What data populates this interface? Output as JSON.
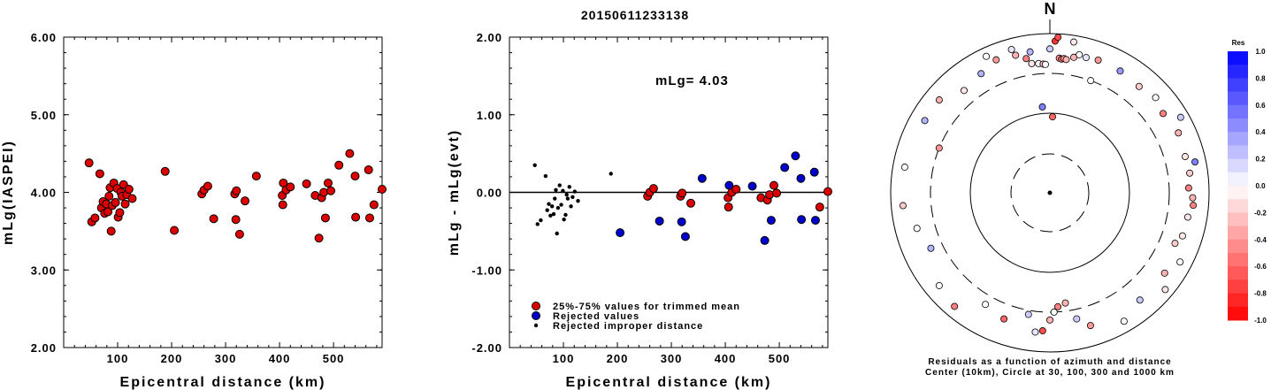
{
  "title": "20150611233138",
  "colors": {
    "used": "#dd0000",
    "rejected": "#0000cc",
    "improper": "#000000"
  },
  "chart_data": [
    {
      "type": "scatter",
      "xlabel": "Epicentral distance (km)",
      "ylabel": "mLg(IASPEI)",
      "xlim": [
        0,
        590
      ],
      "ylim": [
        2,
        6
      ],
      "xticks": [
        "100",
        "200",
        "300",
        "400",
        "500"
      ],
      "yticks": [
        "2.00",
        "3.00",
        "4.00",
        "5.00",
        "6.00"
      ],
      "points": [
        [
          47,
          4.38
        ],
        [
          52,
          3.62
        ],
        [
          58,
          3.67
        ],
        [
          67,
          4.24
        ],
        [
          70,
          3.8
        ],
        [
          73,
          3.88
        ],
        [
          76,
          3.73
        ],
        [
          79,
          3.85
        ],
        [
          82,
          3.75
        ],
        [
          84,
          3.95
        ],
        [
          86,
          4.06
        ],
        [
          88,
          3.5
        ],
        [
          90,
          3.83
        ],
        [
          93,
          4.12
        ],
        [
          96,
          3.87
        ],
        [
          99,
          4.05
        ],
        [
          101,
          3.68
        ],
        [
          104,
          3.74
        ],
        [
          106,
          4.0
        ],
        [
          108,
          3.95
        ],
        [
          111,
          4.1
        ],
        [
          114,
          3.85
        ],
        [
          117,
          3.97
        ],
        [
          121,
          4.04
        ],
        [
          127,
          3.92
        ],
        [
          188,
          4.27
        ],
        [
          205,
          3.51
        ],
        [
          256,
          3.98
        ],
        [
          260,
          4.03
        ],
        [
          267,
          4.08
        ],
        [
          278,
          3.66
        ],
        [
          317,
          3.98
        ],
        [
          319,
          3.65
        ],
        [
          320,
          4.02
        ],
        [
          326,
          3.46
        ],
        [
          336,
          3.89
        ],
        [
          357,
          4.21
        ],
        [
          405,
          3.96
        ],
        [
          406,
          3.84
        ],
        [
          407,
          4.12
        ],
        [
          412,
          4.03
        ],
        [
          420,
          4.07
        ],
        [
          450,
          4.11
        ],
        [
          466,
          3.96
        ],
        [
          473,
          3.41
        ],
        [
          478,
          3.93
        ],
        [
          482,
          4.0
        ],
        [
          485,
          3.67
        ],
        [
          490,
          4.12
        ],
        [
          495,
          4.02
        ],
        [
          510,
          4.35
        ],
        [
          530,
          4.5
        ],
        [
          540,
          4.21
        ],
        [
          541,
          3.68
        ],
        [
          565,
          4.29
        ],
        [
          567,
          3.67
        ],
        [
          575,
          3.84
        ],
        [
          590,
          4.04
        ]
      ]
    },
    {
      "type": "scatter",
      "xlabel": "Epicentral distance (km)",
      "ylabel": "mLg - mLg(evt)",
      "xlim": [
        0,
        590
      ],
      "ylim": [
        -2,
        2
      ],
      "xticks": [
        "100",
        "200",
        "300",
        "400",
        "500"
      ],
      "yticks": [
        "-2.00",
        "-1.00",
        "0.00",
        "1.00",
        "2.00"
      ],
      "reference_line": 0,
      "annotation": "mLg= 4.03",
      "legend": [
        {
          "key": "used",
          "label": "25%-75% values for trimmed mean"
        },
        {
          "key": "rejected",
          "label": "Rejected values"
        },
        {
          "key": "improper",
          "label": "Rejected improper distance"
        }
      ],
      "series": [
        {
          "key": "used",
          "points": [
            [
              256,
              -0.05
            ],
            [
              260,
              0.0
            ],
            [
              267,
              0.05
            ],
            [
              317,
              -0.05
            ],
            [
              320,
              -0.01
            ],
            [
              336,
              -0.14
            ],
            [
              405,
              -0.07
            ],
            [
              406,
              -0.19
            ],
            [
              412,
              0.0
            ],
            [
              420,
              0.04
            ],
            [
              466,
              -0.07
            ],
            [
              478,
              -0.1
            ],
            [
              482,
              -0.03
            ],
            [
              490,
              0.09
            ],
            [
              495,
              -0.01
            ],
            [
              575,
              -0.19
            ],
            [
              590,
              0.01
            ]
          ]
        },
        {
          "key": "rejected",
          "points": [
            [
              205,
              -0.52
            ],
            [
              278,
              -0.37
            ],
            [
              319,
              -0.38
            ],
            [
              326,
              -0.57
            ],
            [
              357,
              0.18
            ],
            [
              407,
              0.09
            ],
            [
              450,
              0.08
            ],
            [
              473,
              -0.62
            ],
            [
              485,
              -0.36
            ],
            [
              510,
              0.32
            ],
            [
              530,
              0.47
            ],
            [
              540,
              0.18
            ],
            [
              541,
              -0.35
            ],
            [
              565,
              0.26
            ],
            [
              567,
              -0.36
            ]
          ]
        },
        {
          "key": "improper",
          "points": [
            [
              47,
              0.35
            ],
            [
              52,
              -0.41
            ],
            [
              58,
              -0.36
            ],
            [
              67,
              0.21
            ],
            [
              70,
              -0.23
            ],
            [
              73,
              -0.15
            ],
            [
              76,
              -0.3
            ],
            [
              79,
              -0.18
            ],
            [
              82,
              -0.28
            ],
            [
              84,
              -0.08
            ],
            [
              86,
              0.03
            ],
            [
              88,
              -0.53
            ],
            [
              90,
              -0.2
            ],
            [
              93,
              0.09
            ],
            [
              96,
              -0.16
            ],
            [
              99,
              0.02
            ],
            [
              101,
              -0.35
            ],
            [
              104,
              -0.29
            ],
            [
              106,
              -0.03
            ],
            [
              108,
              -0.08
            ],
            [
              111,
              0.07
            ],
            [
              114,
              -0.18
            ],
            [
              117,
              -0.06
            ],
            [
              121,
              0.01
            ],
            [
              127,
              -0.11
            ],
            [
              188,
              0.24
            ]
          ]
        }
      ]
    },
    {
      "type": "scatter",
      "subtype": "polar",
      "north_label": "N",
      "caption_line1": "Residuals as a function of azimuth and distance",
      "caption_line2": "Center (10km), Circle at 30, 100, 300 and 1000 km",
      "colorbar": {
        "title": "Res",
        "ticks": [
          "1.0",
          "0.8",
          "0.6",
          "0.4",
          "0.2",
          "0.0",
          "-0.2",
          "-0.4",
          "-0.6",
          "-0.8",
          "-1.0"
        ]
      },
      "points": [
        {
          "az": 0,
          "dist": 630,
          "res": 0.2
        },
        {
          "az": 2,
          "dist": 800,
          "res": -0.8
        },
        {
          "az": 3,
          "dist": 900,
          "res": -0.7
        },
        {
          "az": 4,
          "dist": 480,
          "res": -0.4
        },
        {
          "az": 9,
          "dist": 820,
          "res": -0.1
        },
        {
          "az": 10,
          "dist": 520,
          "res": -0.3
        },
        {
          "az": 12,
          "dist": 580,
          "res": 0.0
        },
        {
          "az": 2,
          "dist": 90,
          "res": -0.6
        },
        {
          "az": -5,
          "dist": 120,
          "res": 0.5
        },
        {
          "az": -8,
          "dist": 600,
          "res": 0.3
        },
        {
          "az": -14,
          "dist": 590,
          "res": -0.3
        }
      ]
    }
  ]
}
